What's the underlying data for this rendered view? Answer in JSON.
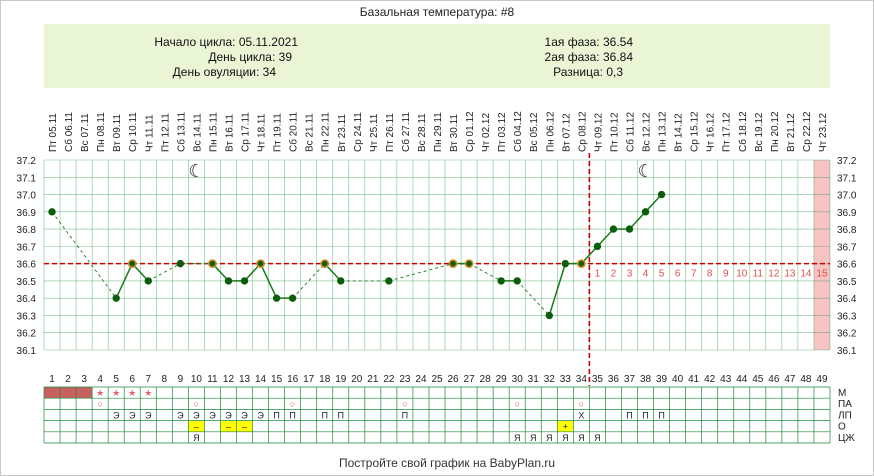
{
  "title": "Базальная температура: #8",
  "info": {
    "cycle_start": "Начало цикла: 05.11.2021",
    "cycle_day": "День цикла: 39",
    "ovulation_day": "День овуляции: 34",
    "phase1": "1ая фаза: 36.54",
    "phase2": "2ая фаза: 36.84",
    "difference": "Разница: 0,3"
  },
  "footer": "Постройте свой график на BabyPlan.ru",
  "colors": {
    "line": "#1a7a1a",
    "marker": "#0b5e0b",
    "special_marker": "#d98b1a",
    "coverline": "#cc0000",
    "grid": "#1b8a3a",
    "info_bg": "#eaf5d5",
    "highlight_col": "#f7c3c3",
    "menses": "#c96060",
    "yellow": "#ffff00"
  },
  "chart_data": {
    "type": "line",
    "title": "Базальная температура: #8",
    "ylim": [
      36.1,
      37.2
    ],
    "yticks": [
      "37.2",
      "37.1",
      "37.0",
      "36.9",
      "36.8",
      "36.7",
      "36.6",
      "36.5",
      "36.4",
      "36.3",
      "36.2",
      "36.1"
    ],
    "days": [
      1,
      2,
      3,
      4,
      5,
      6,
      7,
      8,
      9,
      10,
      11,
      12,
      13,
      14,
      15,
      16,
      17,
      18,
      19,
      20,
      21,
      22,
      23,
      24,
      25,
      26,
      27,
      28,
      29,
      30,
      31,
      32,
      33,
      34,
      35,
      36,
      37,
      38,
      39,
      40,
      41,
      42,
      43,
      44,
      45,
      46,
      47,
      48,
      49
    ],
    "dates": [
      "Пт 05.11",
      "Сб 06.11",
      "Вс 07.11",
      "Пн 08.11",
      "Вт 09.11",
      "Ср 10.11",
      "Чт 11.11",
      "Пт 12.11",
      "Сб 13.11",
      "Вс 14.11",
      "Пн 15.11",
      "Вт 16.11",
      "Ср 17.11",
      "Чт 18.11",
      "Пт 19.11",
      "Сб 20.11",
      "Вс 21.11",
      "Пн 22.11",
      "Вт 23.11",
      "Ср 24.11",
      "Чт 25.11",
      "Пт 26.11",
      "Сб 27.11",
      "Вс 28.11",
      "Пн 29.11",
      "Вт 30.11",
      "Ср 01.12",
      "Чт 02.12",
      "Пт 03.12",
      "Сб 04.12",
      "Вс 05.12",
      "Пн 06.12",
      "Вт 07.12",
      "Ср 08.12",
      "Чт 09.12",
      "Пт 10.12",
      "Сб 11.12",
      "Вс 12.12",
      "Пн 13.12",
      "Вт 14.12",
      "Ср 15.12",
      "Чт 16.12",
      "Пт 17.12",
      "Сб 18.12",
      "Вс 19.12",
      "Пн 20.12",
      "Вт 21.12",
      "Ср 22.12",
      "Чт 23.12"
    ],
    "temperatures": [
      [
        1,
        36.9
      ],
      [
        5,
        36.4
      ],
      [
        6,
        36.6
      ],
      [
        7,
        36.5
      ],
      [
        9,
        36.6
      ],
      [
        11,
        36.6
      ],
      [
        12,
        36.5
      ],
      [
        13,
        36.5
      ],
      [
        14,
        36.6
      ],
      [
        15,
        36.4
      ],
      [
        16,
        36.4
      ],
      [
        18,
        36.6
      ],
      [
        19,
        36.5
      ],
      [
        22,
        36.5
      ],
      [
        26,
        36.6
      ],
      [
        27,
        36.6
      ],
      [
        29,
        36.5
      ],
      [
        30,
        36.5
      ],
      [
        32,
        36.3
      ],
      [
        33,
        36.6
      ],
      [
        34,
        36.6
      ],
      [
        35,
        36.7
      ],
      [
        36,
        36.8
      ],
      [
        37,
        36.8
      ],
      [
        38,
        36.9
      ],
      [
        39,
        37.0
      ]
    ],
    "special_points": [
      6,
      11,
      14,
      18,
      26,
      27,
      34
    ],
    "coverline": 36.6,
    "ovulation_day": 34,
    "moon_days": [
      10,
      38
    ],
    "highlight_day": 49,
    "luteal_numbers": [
      "1",
      "2",
      "3",
      "4",
      "5",
      "6",
      "7",
      "8",
      "9",
      "10",
      "11",
      "12",
      "13",
      "14",
      "15"
    ],
    "luteal_start_day": 35
  },
  "table": {
    "labels": [
      "М",
      "ПА",
      "ЛП",
      "О",
      "ЦЖ"
    ],
    "rows": [
      {
        "id": "M",
        "cells": {
          "1": "fill",
          "2": "fill",
          "3": "fill",
          "4": "★",
          "5": "★",
          "6": "★",
          "7": "★"
        }
      },
      {
        "id": "PA",
        "cells": {
          "4": "○",
          "10": "○",
          "16": "○",
          "23": "○",
          "30": "○",
          "34": "○"
        }
      },
      {
        "id": "LP",
        "cells": {
          "5": "Э",
          "6": "Э",
          "7": "Э",
          "9": "Э",
          "10": "Э",
          "11": "Э",
          "12": "Э",
          "13": "Э",
          "14": "Э",
          "15": "П",
          "16": "П",
          "18": "П",
          "19": "П",
          "23": "П",
          "34": "Х",
          "37": "П",
          "38": "П",
          "39": "П"
        }
      },
      {
        "id": "O",
        "cells": {
          "10": "–",
          "12": "–",
          "13": "–",
          "33": "+"
        }
      },
      {
        "id": "CZH",
        "cells": {
          "10": "Я",
          "30": "Я",
          "31": "Я",
          "32": "Я",
          "33": "Я",
          "34": "Я",
          "35": "Я"
        }
      }
    ],
    "yellow_cells": {
      "O": [
        10,
        12,
        13,
        33
      ]
    }
  }
}
